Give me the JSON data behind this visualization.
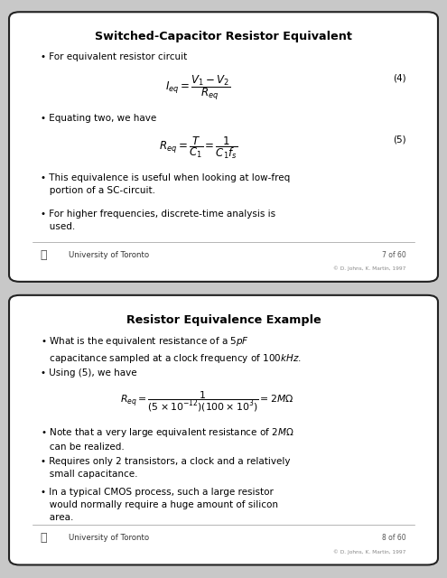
{
  "bg_color": "#c8c8c8",
  "box_edge": "#222222",
  "slide1_title": "Switched-Capacitor Resistor Equivalent",
  "slide1_eq1_num": "(4)",
  "slide1_eq2_num": "(5)",
  "slide1_page": "7 of 60",
  "slide1_copyright": "© D. Johns, K. Martin, 1997",
  "slide2_title": "Resistor Equivalence Example",
  "slide2_page": "8 of 60",
  "slide2_copyright": "© D. Johns, K. Martin, 1997"
}
